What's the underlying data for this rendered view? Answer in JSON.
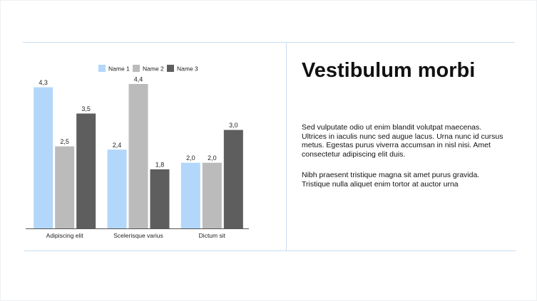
{
  "text": {
    "title": "Vestibulum morbi",
    "paragraphs": [
      "Sed vulputate odio ut enim blandit volutpat maecenas. Ultrices in iaculis nunc sed augue lacus. Urna nunc id cursus metus. Egestas purus viverra accumsan in nisl nisi. Amet consectetur adipiscing elit duis.",
      "Nibh praesent tristique magna sit amet purus gravida. Tristique nulla aliquet enim tortor at auctor urna"
    ]
  },
  "chart_data": {
    "type": "bar",
    "title": "",
    "xlabel": "",
    "ylabel": "",
    "categories": [
      "Adipiscing elit",
      "Scelerisque varius",
      "Dictum sit"
    ],
    "series": [
      {
        "name": "Name 1",
        "values": [
          4.3,
          2.4,
          2.0
        ],
        "color": "#b3d7fb"
      },
      {
        "name": "Name 2",
        "values": [
          2.5,
          4.4,
          2.0
        ],
        "color": "#bbbbbb"
      },
      {
        "name": "Name 3",
        "values": [
          3.5,
          1.8,
          3.0
        ],
        "color": "#5e5e5e"
      }
    ],
    "value_labels": [
      [
        "4,3",
        "2,4",
        "2,0"
      ],
      [
        "2,5",
        "4,4",
        "2,0"
      ],
      [
        "3,5",
        "1,8",
        "3,0"
      ]
    ],
    "ylim": [
      0,
      4.4
    ],
    "grid": false,
    "legend_position": "top-center",
    "axis_color": "#555555"
  }
}
